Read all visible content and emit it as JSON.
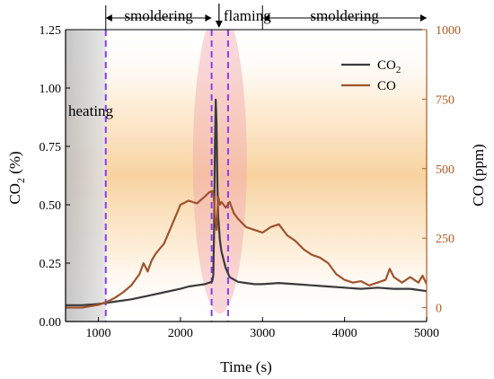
{
  "chart_data": {
    "type": "line",
    "xlabel": "Time (s)",
    "ylabel_left": "CO2 (%)",
    "ylabel_left_main": "CO",
    "ylabel_left_sub": "2",
    "ylabel_left_unit": " (%)",
    "ylabel_right": "CO (ppm)",
    "xlim": [
      600,
      5000
    ],
    "ylim_left": [
      0,
      1.25
    ],
    "ylim_right": [
      -50,
      1000
    ],
    "xticks": [
      1000,
      2000,
      3000,
      4000,
      5000
    ],
    "xtick_labels": [
      "1000",
      "2000",
      "3000",
      "4000",
      "5000"
    ],
    "yticks_left": [
      0.0,
      0.25,
      0.5,
      0.75,
      1.0,
      1.25
    ],
    "ytick_labels_left": [
      "0.00",
      "0.25",
      "0.50",
      "0.75",
      "1.00",
      "1.25"
    ],
    "yticks_right": [
      0,
      250,
      500,
      750,
      1000
    ],
    "ytick_labels_right": [
      "0",
      "250",
      "500",
      "750",
      "1000"
    ],
    "grid": false,
    "legend_position": "top-right",
    "colors": {
      "co2": "#3a3a3a",
      "co": "#a0522d",
      "right_axis": "#b05a22",
      "dashed": "#8b3cf0",
      "heating_bg": "#d3d3d3",
      "glow": "#f4b35e"
    },
    "regions": [
      {
        "label": "heating",
        "x_start": 600,
        "x_end": 1090
      },
      {
        "label": "smoldering",
        "x_start": 1090,
        "x_end": 2380
      },
      {
        "label": "flaming",
        "x_start": 2380,
        "x_end": 2580
      },
      {
        "label": "smoldering",
        "x_start": 2580,
        "x_end": 5000
      }
    ],
    "dashed_lines_x": [
      1090,
      2380,
      2580
    ],
    "top_annotations": [
      {
        "label": "smoldering",
        "x_from": 1090,
        "x_to": 2400
      },
      {
        "label": "flaming",
        "x_at": 2470
      },
      {
        "label": "smoldering",
        "x_from": 3000,
        "x_to": 5000
      }
    ],
    "series": [
      {
        "name": "CO2",
        "name_main": "CO",
        "name_sub": "2",
        "axis": "left",
        "x": [
          600,
          800,
          1000,
          1100,
          1200,
          1400,
          1600,
          1800,
          2000,
          2100,
          2200,
          2300,
          2380,
          2390,
          2400,
          2410,
          2420,
          2430,
          2440,
          2450,
          2460,
          2480,
          2500,
          2550,
          2600,
          2700,
          2800,
          2900,
          3000,
          3200,
          3400,
          3600,
          3800,
          4000,
          4200,
          4400,
          4600,
          4800,
          4900,
          5000
        ],
        "y": [
          0.07,
          0.07,
          0.075,
          0.08,
          0.085,
          0.095,
          0.11,
          0.125,
          0.14,
          0.15,
          0.155,
          0.16,
          0.17,
          0.175,
          0.2,
          0.4,
          0.75,
          0.95,
          0.85,
          0.6,
          0.45,
          0.35,
          0.3,
          0.23,
          0.19,
          0.17,
          0.165,
          0.16,
          0.16,
          0.165,
          0.16,
          0.155,
          0.15,
          0.145,
          0.14,
          0.145,
          0.14,
          0.14,
          0.135,
          0.13
        ]
      },
      {
        "name": "CO",
        "axis": "right",
        "x": [
          600,
          800,
          1000,
          1100,
          1200,
          1300,
          1400,
          1500,
          1550,
          1600,
          1650,
          1700,
          1800,
          1900,
          2000,
          2100,
          2200,
          2300,
          2350,
          2390,
          2400,
          2410,
          2420,
          2440,
          2460,
          2480,
          2500,
          2550,
          2600,
          2650,
          2700,
          2800,
          2900,
          3000,
          3100,
          3200,
          3300,
          3400,
          3500,
          3600,
          3700,
          3800,
          3900,
          4000,
          4100,
          4200,
          4300,
          4400,
          4500,
          4550,
          4600,
          4700,
          4800,
          4900,
          4950,
          5000
        ],
        "y": [
          0,
          0,
          10,
          20,
          35,
          55,
          80,
          120,
          160,
          130,
          170,
          195,
          230,
          300,
          370,
          385,
          375,
          400,
          415,
          420,
          410,
          380,
          330,
          280,
          400,
          370,
          380,
          360,
          380,
          340,
          320,
          290,
          280,
          270,
          290,
          300,
          260,
          240,
          210,
          190,
          180,
          160,
          120,
          100,
          90,
          95,
          80,
          90,
          100,
          140,
          110,
          90,
          110,
          90,
          115,
          85
        ]
      }
    ]
  }
}
